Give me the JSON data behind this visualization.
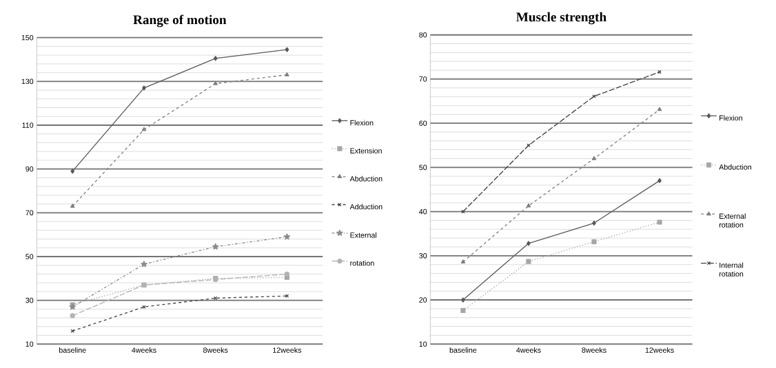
{
  "chart_data": [
    {
      "type": "line",
      "title": "Range of motion",
      "categories": [
        "baseline",
        "4weeks",
        "8weeks",
        "12weeks"
      ],
      "ylim": [
        10,
        150
      ],
      "yticks": [
        10,
        30,
        50,
        70,
        90,
        110,
        130,
        150
      ],
      "grid": "y",
      "legend": "right",
      "series": [
        {
          "name": "Flexion",
          "color": "#595959",
          "marker": "diamond",
          "line_style": "solid",
          "values": [
            89,
            127,
            140.5,
            144.5
          ]
        },
        {
          "name": "Extension",
          "color": "#a6a6a6",
          "marker": "square",
          "line_style": "dotted",
          "values": [
            28,
            37,
            40,
            40.5
          ]
        },
        {
          "name": "Abduction",
          "color": "#7f7f7f",
          "marker": "triangle",
          "line_style": "dashed",
          "values": [
            73,
            108,
            129,
            133
          ]
        },
        {
          "name": "Adduction",
          "color": "#404040",
          "marker": "cross",
          "line_style": "dashed",
          "values": [
            16,
            27,
            31,
            32
          ]
        },
        {
          "name": "External",
          "color": "#8c8c8c",
          "marker": "star",
          "line_style": "dashdot",
          "values": [
            27,
            46.5,
            54.5,
            59
          ]
        },
        {
          "name": "rotation",
          "color": "#b3b3b3",
          "marker": "circle",
          "line_style": "longdash",
          "values": [
            23,
            37,
            39.5,
            42
          ]
        }
      ]
    },
    {
      "type": "line",
      "title": "Muscle strength",
      "categories": [
        "baseline",
        "4weeks",
        "8weeks",
        "12weeks"
      ],
      "ylim": [
        10,
        80
      ],
      "yticks": [
        10,
        20,
        30,
        40,
        50,
        60,
        70,
        80
      ],
      "grid": "y",
      "legend": "right",
      "series": [
        {
          "name": "Flexion",
          "color": "#595959",
          "marker": "diamond",
          "line_style": "solid",
          "values": [
            20,
            32.8,
            37.4,
            47
          ]
        },
        {
          "name": "Abduction",
          "color": "#a6a6a6",
          "marker": "square",
          "line_style": "dotted",
          "values": [
            17.6,
            28.7,
            33.2,
            37.6
          ]
        },
        {
          "name": "External rotation",
          "color": "#7f7f7f",
          "marker": "triangle",
          "line_style": "dashed",
          "values": [
            28.6,
            41.3,
            52,
            63.1
          ]
        },
        {
          "name": "Internal rotation",
          "color": "#404040",
          "marker": "cross",
          "line_style": "longdash",
          "values": [
            40,
            55,
            66.1,
            71.6
          ]
        }
      ]
    }
  ]
}
